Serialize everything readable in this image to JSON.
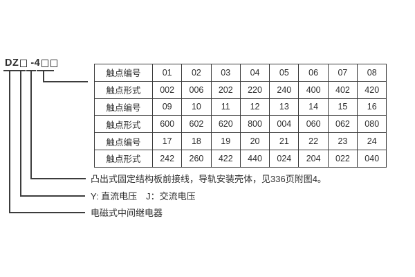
{
  "model": {
    "prefix": "DZ",
    "infix": "-4"
  },
  "table": {
    "row_labels": [
      "触点编号",
      "触点形式"
    ],
    "rows": [
      {
        "label": "触点编号",
        "cells": [
          "01",
          "02",
          "03",
          "04",
          "05",
          "06",
          "07",
          "08"
        ]
      },
      {
        "label": "触点形式",
        "cells": [
          "002",
          "006",
          "202",
          "220",
          "240",
          "400",
          "402",
          "420"
        ]
      },
      {
        "label": "触点编号",
        "cells": [
          "09",
          "10",
          "11",
          "12",
          "13",
          "14",
          "15",
          "16"
        ]
      },
      {
        "label": "触点形式",
        "cells": [
          "600",
          "602",
          "620",
          "800",
          "004",
          "060",
          "062",
          "080"
        ]
      },
      {
        "label": "触点编号",
        "cells": [
          "17",
          "18",
          "19",
          "20",
          "21",
          "22",
          "23",
          "24"
        ]
      },
      {
        "label": "触点形式",
        "cells": [
          "242",
          "260",
          "422",
          "440",
          "024",
          "204",
          "022",
          "040"
        ]
      }
    ]
  },
  "annotations": {
    "structure": "凸出式固定结构板前接线，导轨安装壳体，见336页附图4。",
    "voltage": "Y: 直流电压　J：交流电压",
    "relay_type": "电磁式中间继电器"
  },
  "colors": {
    "line": "#3c3c3c",
    "text": "#2e2e2e",
    "background": "#ffffff"
  }
}
